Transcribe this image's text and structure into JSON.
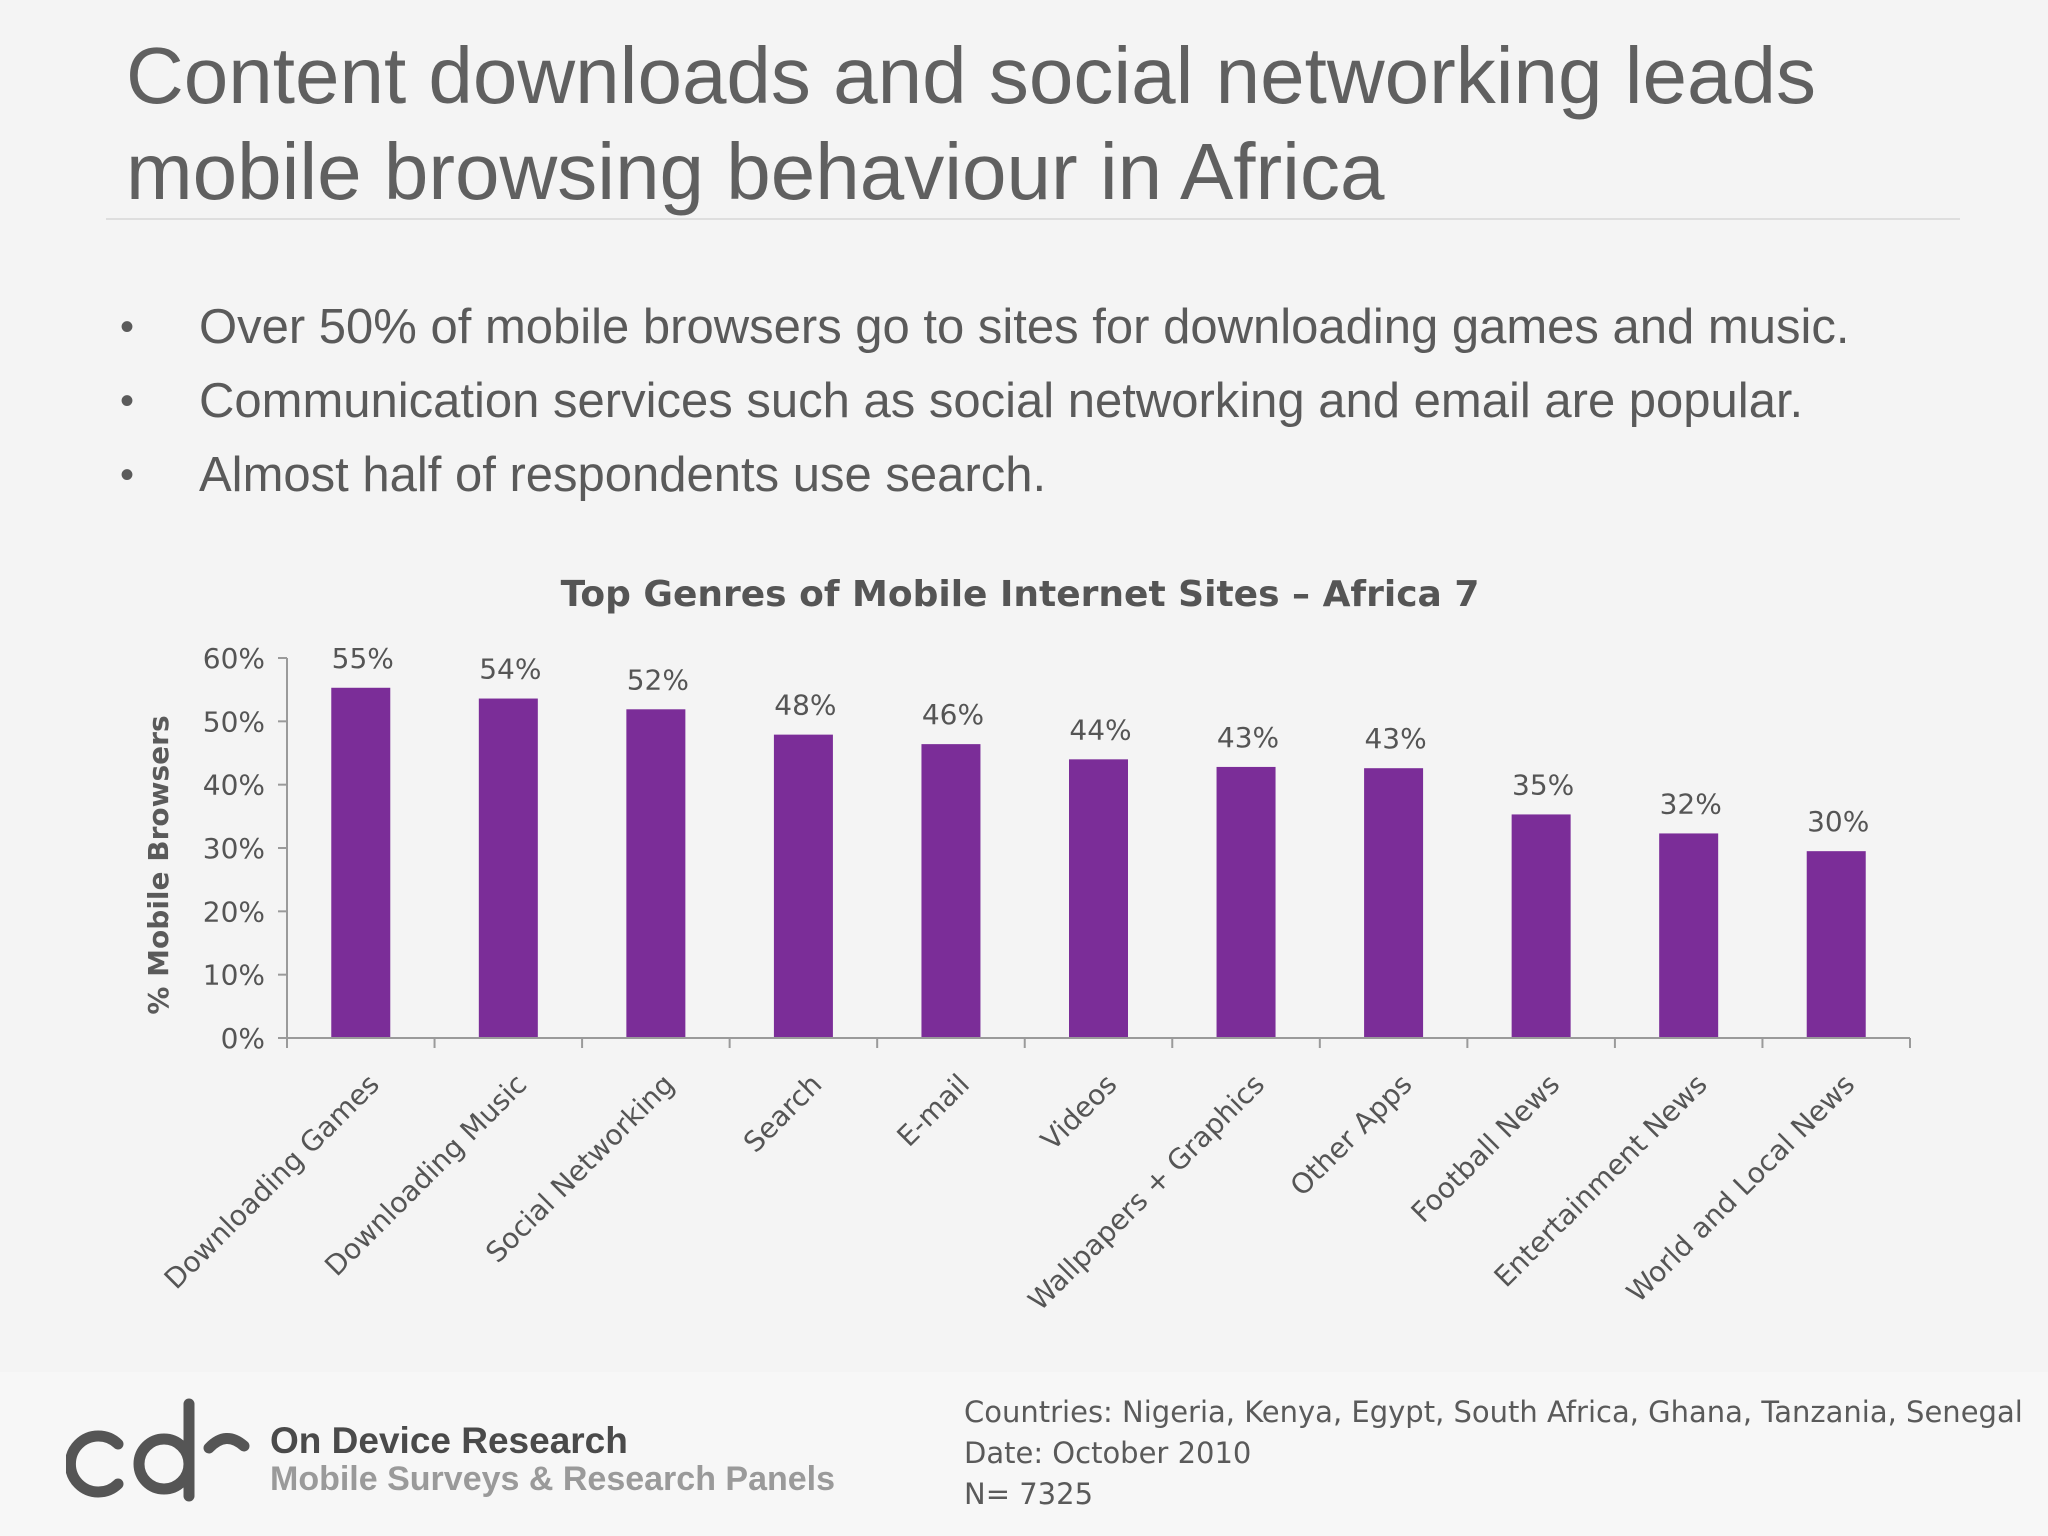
{
  "slide": {
    "title_line1": "Content downloads and social networking leads",
    "title_line2": "mobile browsing behaviour in Africa",
    "bullets": [
      "Over 50% of mobile browsers go to sites for downloading games and music.",
      "Communication services such as social networking and email are popular.",
      "Almost half of respondents use search."
    ],
    "bullet_glyph": "•"
  },
  "chart_data": {
    "type": "bar",
    "title": "Top Genres of Mobile Internet Sites – Africa 7",
    "xlabel": "",
    "ylabel": "% Mobile Browsers",
    "ylim": [
      0,
      60
    ],
    "yticks": [
      "0%",
      "10%",
      "20%",
      "30%",
      "40%",
      "50%",
      "60%"
    ],
    "categories": [
      "Downloading Games",
      "Downloading Music",
      "Social Networking",
      "Search",
      "E-mail",
      "Videos",
      "Wallpapers + Graphics",
      "Other Apps",
      "Football News",
      "Entertainment News",
      "World and Local News"
    ],
    "values": [
      55.3,
      53.6,
      51.9,
      47.9,
      46.4,
      44.0,
      42.8,
      42.6,
      35.3,
      32.3,
      29.5
    ],
    "data_labels": [
      "55%",
      "54%",
      "52%",
      "48%",
      "46%",
      "44%",
      "43%",
      "43%",
      "35%",
      "32%",
      "30%"
    ],
    "bar_color": "#7b2d98",
    "legend": "none",
    "grid": false
  },
  "footer": {
    "brand_name": "On Device Research",
    "brand_tagline": "Mobile Surveys & Research Panels",
    "logo_letters": "cdr",
    "notes": [
      "Countries: Nigeria, Kenya, Egypt, South Africa, Ghana, Tanzania, Senegal",
      "Date:  October 2010",
      "N= 7325"
    ]
  }
}
